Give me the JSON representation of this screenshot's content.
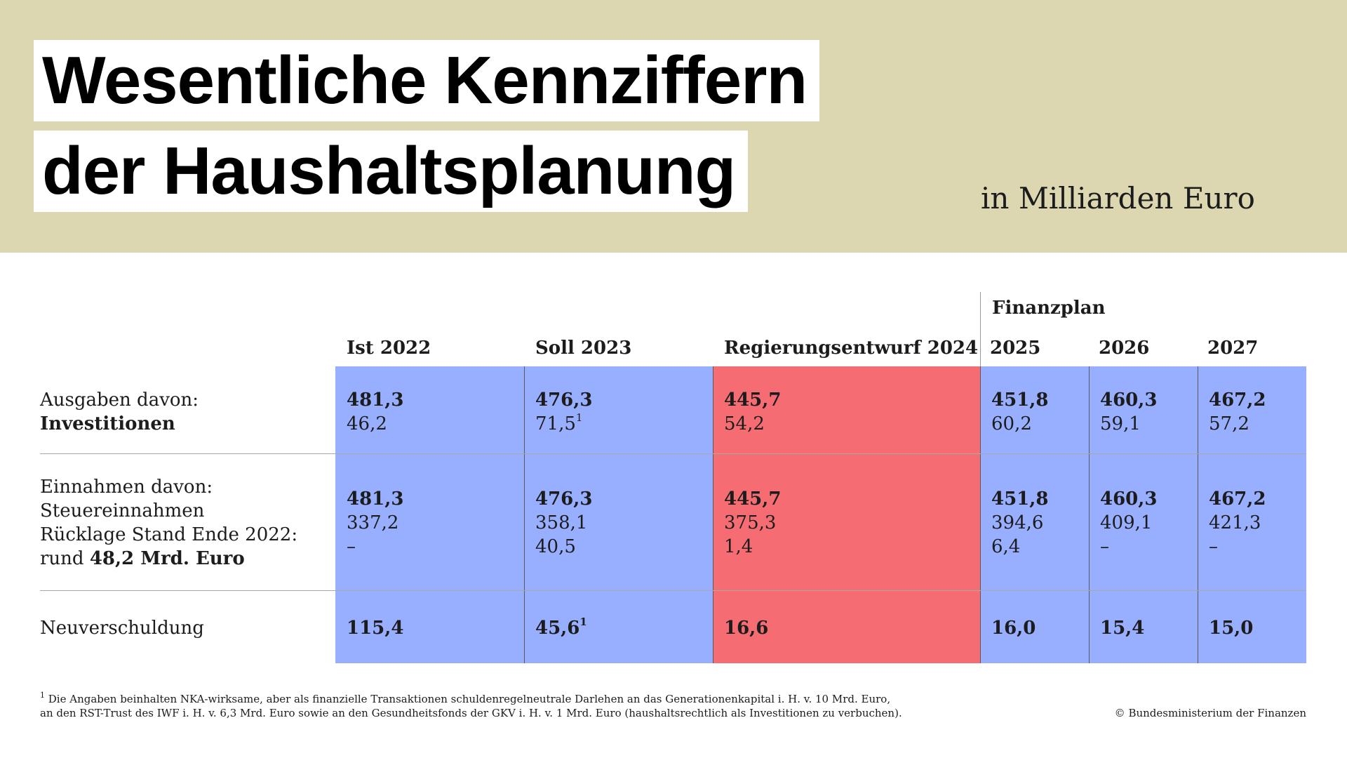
{
  "header": {
    "title_line1": "Wesentliche Kennziffern",
    "title_line2": "der Haushaltsplanung",
    "unit": "in Milliarden Euro"
  },
  "colors": {
    "header_background": "#dcd7b1",
    "blue_cells": "#98aefe",
    "red_cells": "#f56d73"
  },
  "chart_data": {
    "type": "table",
    "title": "Wesentliche Kennziffern der Haushaltsplanung",
    "unit": "in Milliarden Euro",
    "group_header": "Finanzplan",
    "columns": [
      {
        "label": "Ist 2022",
        "highlight": "blue"
      },
      {
        "label": "Soll 2023",
        "highlight": "blue"
      },
      {
        "label": "Regierungsentwurf 2024",
        "highlight": "red"
      },
      {
        "label": "2025",
        "highlight": "blue"
      },
      {
        "label": "2026",
        "highlight": "blue"
      },
      {
        "label": "2027",
        "highlight": "blue"
      }
    ],
    "row_labels": {
      "ausgaben_line1": "Ausgaben davon:",
      "ausgaben_line2": "Investitionen",
      "einnahmen_line1": "Einnahmen davon:",
      "einnahmen_line2": "Steuereinnahmen",
      "einnahmen_line3": "Rücklage Stand Ende 2022:",
      "einnahmen_line4_prefix": "rund",
      "einnahmen_line4_bold": "48,2 Mrd. Euro",
      "neuverschuldung": "Neuverschuldung"
    },
    "ausgaben": [
      "481,3",
      "476,3",
      "445,7",
      "451,8",
      "460,3",
      "467,2"
    ],
    "investitionen": [
      "46,2",
      "71,5",
      "54,2",
      "60,2",
      "59,1",
      "57,2"
    ],
    "investitionen_footnote": [
      "",
      "1",
      "",
      "",
      "",
      ""
    ],
    "einnahmen": [
      "481,3",
      "476,3",
      "445,7",
      "451,8",
      "460,3",
      "467,2"
    ],
    "steuereinnahmen": [
      "337,2",
      "358,1",
      "375,3",
      "394,6",
      "409,1",
      "421,3"
    ],
    "ruecklage": [
      "–",
      "40,5",
      "1,4",
      "6,4",
      "–",
      "–"
    ],
    "neuverschuldung": [
      "115,4",
      "45,6",
      "16,6",
      "16,0",
      "15,4",
      "15,0"
    ],
    "neuverschuldung_footnote": [
      "",
      "1",
      "",
      "",
      "",
      ""
    ]
  },
  "footnote": {
    "marker": "1",
    "line1": "Die Angaben beinhalten NKA-wirksame, aber als finanzielle Transaktionen schuldenregelneutrale Darlehen an das Generationenkapital i. H. v. 10 Mrd. Euro,",
    "line2": "an den RST-Trust des IWF i. H. v. 6,3 Mrd. Euro sowie an den Gesundheitsfonds der GKV i. H. v. 1 Mrd. Euro (haushaltsrechtlich als Investitionen zu verbuchen)."
  },
  "copyright": "© Bundesministerium der Finanzen"
}
